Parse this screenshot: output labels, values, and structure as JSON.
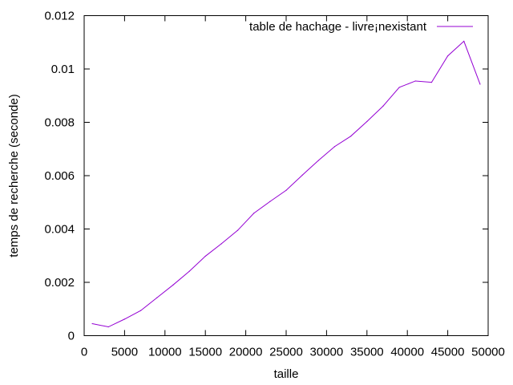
{
  "chart_data": {
    "type": "line",
    "xlabel": "taille",
    "ylabel": "temps de recherche (seconde)",
    "xlim": [
      0,
      50000
    ],
    "ylim": [
      0,
      0.012
    ],
    "xticks": [
      0,
      5000,
      10000,
      15000,
      20000,
      25000,
      30000,
      35000,
      40000,
      45000,
      50000
    ],
    "yticks": [
      0,
      0.002,
      0.004,
      0.006,
      0.008,
      0.01,
      0.012
    ],
    "xtick_labels": [
      "0",
      "5000",
      "10000",
      "15000",
      "20000",
      "25000",
      "30000",
      "35000",
      "40000",
      "45000",
      "50000"
    ],
    "ytick_labels": [
      "0",
      "0.002",
      "0.004",
      "0.006",
      "0.008",
      "0.01",
      "0.012"
    ],
    "grid": false,
    "legend_position": "top-right",
    "series": [
      {
        "name": "table de hachage - livre¡nexistant",
        "color": "#9400d3",
        "x": [
          1000,
          3000,
          5000,
          7000,
          9000,
          11000,
          13000,
          15000,
          17000,
          19000,
          21000,
          23000,
          25000,
          27000,
          29000,
          31000,
          33000,
          35000,
          37000,
          39000,
          41000,
          43000,
          45000,
          47000,
          49000
        ],
        "y": [
          0.00045,
          0.00033,
          0.00062,
          0.00094,
          0.00142,
          0.0019,
          0.00241,
          0.00298,
          0.00345,
          0.00395,
          0.00459,
          0.00503,
          0.00545,
          0.00602,
          0.00657,
          0.00709,
          0.00748,
          0.00803,
          0.00861,
          0.00931,
          0.00955,
          0.0095,
          0.01049,
          0.01104,
          0.00943
        ]
      }
    ]
  }
}
